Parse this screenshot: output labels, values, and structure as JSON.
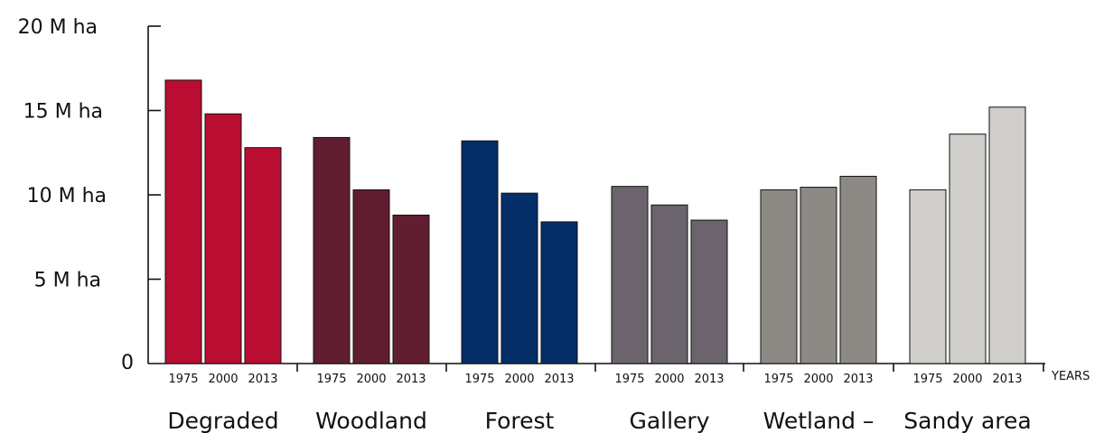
{
  "chart_data": {
    "type": "bar",
    "title": "",
    "xlabel": "",
    "ylabel": "",
    "ylim": [
      0,
      20
    ],
    "y_ticks": [
      {
        "value": 0,
        "label": "0"
      },
      {
        "value": 5,
        "label": "5 M ha"
      },
      {
        "value": 10,
        "label": "10 M ha"
      },
      {
        "value": 15,
        "label": "15 M ha"
      },
      {
        "value": 20,
        "label": "20 M ha"
      }
    ],
    "x_unit_label": "YEARS",
    "years": [
      "1975",
      "2000",
      "2013"
    ],
    "groups": [
      {
        "label": "Degraded",
        "color": "#b90e31",
        "values": [
          16.8,
          14.8,
          12.8
        ]
      },
      {
        "label": "Woodland",
        "color": "#611e31",
        "values": [
          13.4,
          10.3,
          8.8
        ]
      },
      {
        "label": "Forest",
        "color": "#042e68",
        "values": [
          13.2,
          10.1,
          8.4
        ]
      },
      {
        "label": "Gallery",
        "color": "#6b646d",
        "values": [
          10.5,
          9.4,
          8.5
        ]
      },
      {
        "label": "Wetland –",
        "color": "#8d8a85",
        "values": [
          10.3,
          10.45,
          11.1
        ]
      },
      {
        "label": "Sandy area",
        "color": "#cfcecb",
        "values": [
          10.3,
          13.6,
          15.2
        ]
      }
    ],
    "legend": "none",
    "grid": false
  }
}
